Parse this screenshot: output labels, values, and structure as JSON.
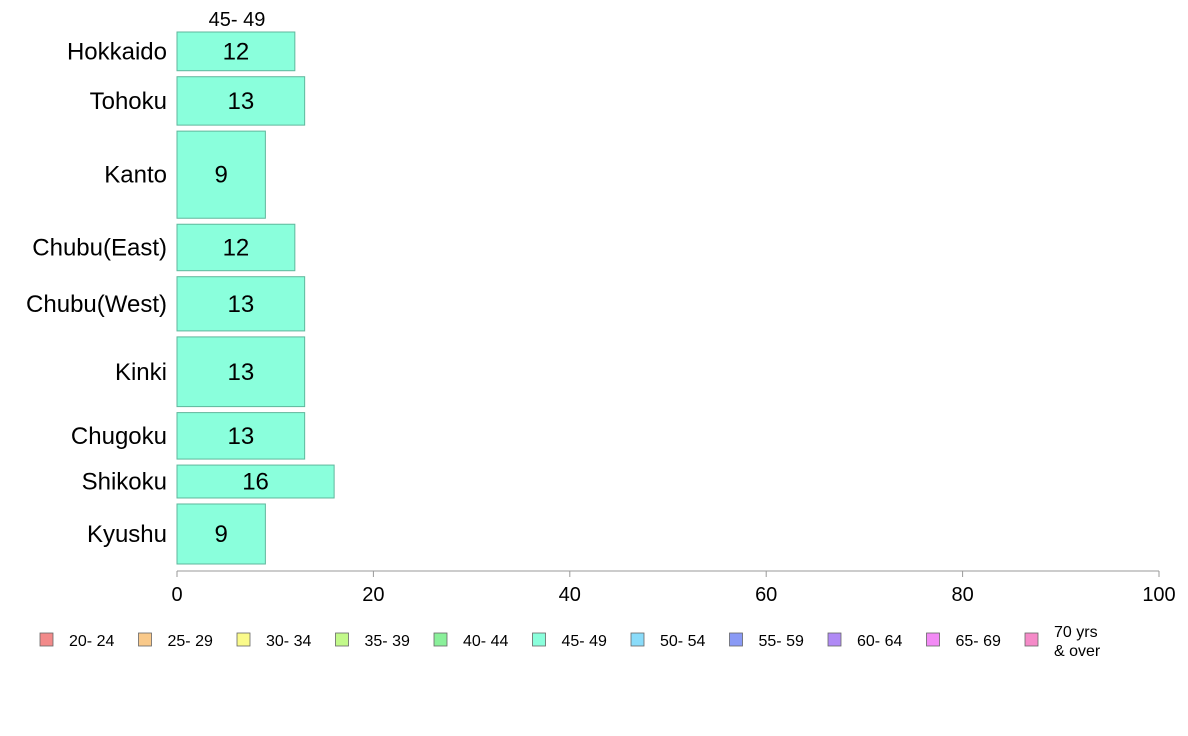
{
  "chart_data": {
    "type": "bar",
    "orientation": "horizontal",
    "series_header": "45- 49",
    "categories": [
      "Hokkaido",
      "Tohoku",
      "Kanto",
      "Chubu(East)",
      "Chubu(West)",
      "Kinki",
      "Chugoku",
      "Shikoku",
      "Kyushu"
    ],
    "series": [
      {
        "name": "45- 49",
        "values": [
          12,
          13,
          9,
          12,
          13,
          13,
          13,
          16,
          9
        ]
      }
    ],
    "category_weights": [
      1.0,
      1.25,
      2.25,
      1.2,
      1.4,
      1.8,
      1.2,
      0.85,
      1.55
    ],
    "xlim": [
      0,
      100
    ],
    "xticks": [
      0,
      20,
      40,
      60,
      80,
      100
    ],
    "grid": false,
    "legend_position": "bottom",
    "legend": [
      {
        "label": "20- 24",
        "color": "#f28a8a"
      },
      {
        "label": "25- 29",
        "color": "#f9c98a"
      },
      {
        "label": "30- 34",
        "color": "#fafa8a"
      },
      {
        "label": "35- 39",
        "color": "#c2f98a"
      },
      {
        "label": "40- 44",
        "color": "#8af09a"
      },
      {
        "label": "45- 49",
        "color": "#8affdc"
      },
      {
        "label": "50- 54",
        "color": "#8adcfa"
      },
      {
        "label": "55- 59",
        "color": "#8a9af5"
      },
      {
        "label": "60- 64",
        "color": "#b08af5"
      },
      {
        "label": "65- 69",
        "color": "#f28af5"
      },
      {
        "label": "70 yrs & over",
        "lines": [
          "70 yrs",
          "& over"
        ],
        "color": "#f58ac8"
      }
    ],
    "bar_color": "#8affdc",
    "bar_stroke": "#5fb79c"
  }
}
